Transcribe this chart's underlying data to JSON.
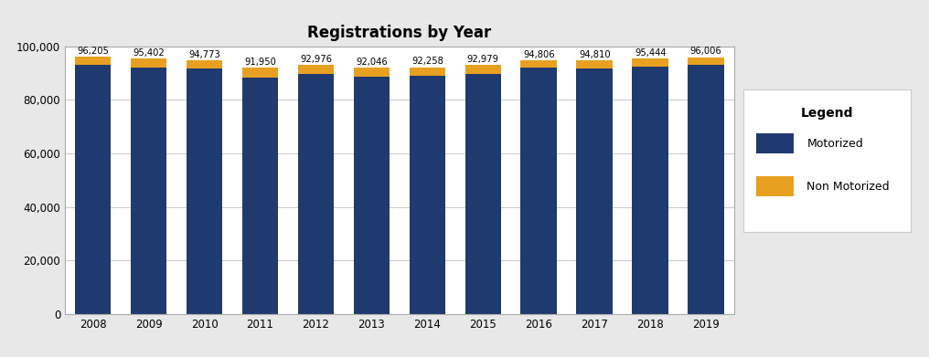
{
  "years": [
    2008,
    2009,
    2010,
    2011,
    2012,
    2013,
    2014,
    2015,
    2016,
    2017,
    2018,
    2019
  ],
  "totals": [
    96205,
    95402,
    94773,
    91950,
    92976,
    92046,
    92258,
    92979,
    94806,
    94810,
    95444,
    96006
  ],
  "non_motorized": [
    3205,
    3202,
    3173,
    3450,
    3276,
    3246,
    3158,
    3279,
    2806,
    2910,
    2844,
    3006
  ],
  "motorized_color": "#1F3A6E",
  "non_motorized_color": "#E8A020",
  "bar_width": 0.65,
  "title": "Registrations by Year",
  "title_fontsize": 12,
  "ylim": [
    0,
    100000
  ],
  "yticks": [
    0,
    20000,
    40000,
    60000,
    80000,
    100000
  ],
  "background_color": "#E8E8E8",
  "plot_bg_color": "#FFFFFF",
  "grid_color": "#CCCCCC",
  "legend_title": "Legend",
  "legend_labels": [
    "Motorized",
    "Non Motorized"
  ],
  "annotation_fontsize": 7.2,
  "border_color": "#AAAAAA"
}
